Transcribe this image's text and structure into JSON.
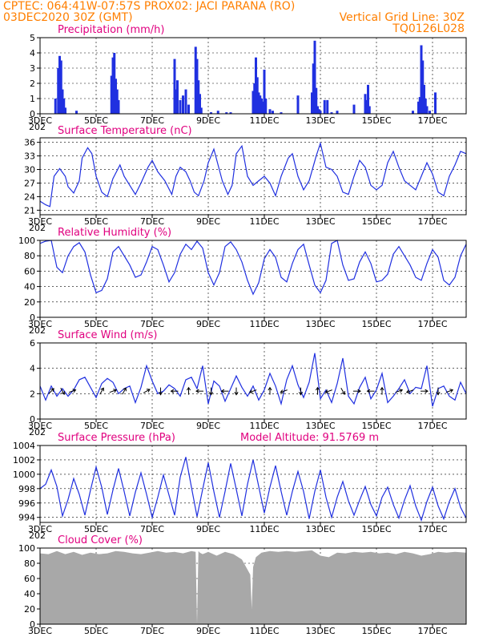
{
  "header": {
    "line1_left": "CPTEC:   064:41W-07:57S   PROX02: JACI PARANA (RO)",
    "line2_left": "03DEC2020 30Z (GMT)",
    "line2_right": "Vertical Grid Line: 30Z",
    "line3_right": "TQ0126L028"
  },
  "x_axis": {
    "start_day": 3,
    "end_day": 18.2,
    "tick_labels": [
      "3DEC",
      "5DEC",
      "7DEC",
      "9DEC",
      "11DEC",
      "13DEC",
      "15DEC",
      "17DEC"
    ],
    "tick_days": [
      3,
      5,
      7,
      9,
      11,
      13,
      15,
      17
    ],
    "corner_label": "202"
  },
  "colors": {
    "line": "#2030e0",
    "bar": "#2030e0",
    "cloud": "#a8a8a8",
    "header": "#ff7f00",
    "title": "#e0007f"
  },
  "chart_data": [
    {
      "type": "bar",
      "title": "Precipitation (mm/h)",
      "ylim": [
        0,
        5
      ],
      "yticks": [
        0,
        1,
        2,
        3,
        4,
        5
      ],
      "x": [
        3.55,
        3.65,
        3.7,
        3.75,
        3.8,
        3.85,
        3.9,
        4.3,
        5.55,
        5.6,
        5.65,
        5.7,
        5.75,
        5.8,
        7.8,
        7.85,
        7.9,
        8.0,
        8.1,
        8.2,
        8.3,
        8.55,
        8.6,
        8.65,
        8.7,
        8.75,
        9.1,
        9.35,
        9.65,
        9.8,
        10.6,
        10.65,
        10.7,
        10.75,
        10.8,
        10.85,
        10.9,
        10.95,
        11.0,
        11.05,
        11.2,
        11.3,
        11.6,
        12.2,
        12.7,
        12.75,
        12.8,
        12.85,
        12.9,
        12.95,
        13.0,
        13.15,
        13.25,
        13.4,
        13.6,
        14.2,
        14.6,
        14.65,
        14.7,
        14.75,
        16.3,
        16.5,
        16.55,
        16.6,
        16.65,
        16.7,
        16.75,
        16.8,
        16.9,
        17.1
      ],
      "values": [
        1.0,
        3.0,
        3.8,
        3.5,
        1.6,
        1.0,
        0.4,
        0.2,
        2.5,
        3.7,
        4.0,
        2.3,
        1.6,
        0.9,
        3.6,
        1.6,
        2.2,
        0.9,
        1.2,
        1.6,
        0.6,
        4.4,
        3.6,
        2.2,
        1.3,
        0.4,
        0.1,
        0.2,
        0.1,
        0.1,
        1.5,
        2.0,
        3.7,
        2.4,
        1.4,
        1.2,
        1.0,
        0.8,
        2.9,
        1.0,
        0.3,
        0.2,
        0.1,
        1.2,
        1.4,
        3.3,
        4.8,
        1.7,
        0.5,
        0.3,
        0.2,
        0.9,
        0.9,
        0.1,
        0.2,
        0.6,
        1.3,
        0.9,
        1.9,
        0.5,
        0.2,
        0.8,
        1.1,
        4.5,
        3.5,
        1.9,
        1.0,
        0.5,
        0.2,
        1.4
      ]
    },
    {
      "type": "line",
      "title": "Surface Temperature (nC)",
      "ylim": [
        20,
        37
      ],
      "yticks": [
        21,
        24,
        27,
        30,
        33,
        36
      ],
      "x": [
        3.0,
        3.2,
        3.35,
        3.5,
        3.7,
        3.9,
        4.0,
        4.2,
        4.4,
        4.5,
        4.7,
        4.85,
        5.0,
        5.2,
        5.4,
        5.6,
        5.85,
        6.0,
        6.2,
        6.4,
        6.6,
        6.85,
        7.0,
        7.2,
        7.45,
        7.7,
        7.85,
        8.0,
        8.2,
        8.35,
        8.5,
        8.65,
        8.85,
        9.0,
        9.2,
        9.5,
        9.7,
        9.85,
        10.0,
        10.2,
        10.4,
        10.6,
        10.8,
        11.0,
        11.2,
        11.4,
        11.6,
        11.85,
        12.0,
        12.2,
        12.4,
        12.6,
        12.85,
        13.0,
        13.2,
        13.4,
        13.6,
        13.8,
        14.0,
        14.2,
        14.4,
        14.6,
        14.8,
        15.0,
        15.2,
        15.4,
        15.6,
        15.8,
        16.0,
        16.2,
        16.4,
        16.6,
        16.8,
        17.0,
        17.2,
        17.4,
        17.6,
        17.8,
        18.0,
        18.2
      ],
      "values": [
        23.0,
        22.2,
        21.8,
        28.5,
        30.2,
        28.5,
        26.2,
        24.8,
        27.5,
        32.5,
        34.8,
        33.5,
        28.5,
        25.0,
        24.0,
        28.0,
        31.0,
        28.5,
        26.5,
        24.5,
        27.0,
        30.5,
        32.0,
        29.5,
        27.5,
        24.5,
        28.5,
        30.5,
        29.5,
        27.5,
        25.0,
        24.2,
        27.5,
        31.5,
        34.5,
        27.5,
        24.5,
        26.5,
        33.5,
        35.2,
        28.5,
        26.5,
        27.5,
        28.5,
        27.0,
        24.2,
        28.5,
        32.5,
        33.5,
        28.5,
        25.5,
        27.5,
        33.0,
        35.8,
        30.5,
        30.0,
        28.5,
        25.0,
        24.5,
        28.5,
        32.0,
        30.5,
        26.5,
        25.5,
        26.5,
        31.5,
        34.0,
        30.5,
        27.5,
        26.5,
        25.5,
        28.5,
        31.5,
        29.0,
        25.0,
        24.2,
        28.5,
        31.0,
        34.0,
        33.5
      ]
    },
    {
      "type": "line",
      "title": "Relative Humidity (%)",
      "ylim": [
        0,
        100
      ],
      "yticks": [
        0,
        20,
        40,
        60,
        80,
        100
      ],
      "x": [
        3.0,
        3.2,
        3.4,
        3.6,
        3.8,
        4.0,
        4.2,
        4.4,
        4.6,
        4.8,
        5.0,
        5.2,
        5.4,
        5.6,
        5.8,
        6.0,
        6.2,
        6.4,
        6.6,
        6.8,
        7.0,
        7.2,
        7.4,
        7.6,
        7.8,
        8.0,
        8.2,
        8.4,
        8.6,
        8.8,
        9.0,
        9.2,
        9.4,
        9.6,
        9.8,
        10.0,
        10.2,
        10.4,
        10.6,
        10.8,
        11.0,
        11.2,
        11.4,
        11.6,
        11.8,
        12.0,
        12.2,
        12.4,
        12.6,
        12.8,
        13.0,
        13.2,
        13.4,
        13.6,
        13.8,
        14.0,
        14.2,
        14.4,
        14.6,
        14.8,
        15.0,
        15.2,
        15.4,
        15.6,
        15.8,
        16.0,
        16.2,
        16.4,
        16.6,
        16.8,
        17.0,
        17.2,
        17.4,
        17.6,
        17.8,
        18.0,
        18.2
      ],
      "values": [
        96,
        99,
        100,
        65,
        58,
        80,
        92,
        97,
        85,
        55,
        32,
        35,
        50,
        85,
        92,
        80,
        68,
        52,
        55,
        72,
        92,
        88,
        68,
        46,
        58,
        82,
        95,
        88,
        99,
        90,
        58,
        42,
        58,
        92,
        98,
        88,
        72,
        48,
        30,
        45,
        76,
        88,
        78,
        52,
        46,
        70,
        88,
        95,
        68,
        42,
        32,
        48,
        96,
        100,
        68,
        48,
        50,
        72,
        85,
        70,
        46,
        48,
        56,
        82,
        92,
        80,
        68,
        52,
        48,
        70,
        88,
        78,
        48,
        42,
        52,
        80,
        95
      ]
    },
    {
      "type": "line",
      "title": "Surface Wind (m/s)",
      "ylim": [
        0,
        6
      ],
      "yticks": [
        0,
        2,
        4,
        6
      ],
      "x": [
        3.0,
        3.2,
        3.4,
        3.6,
        3.8,
        4.0,
        4.2,
        4.4,
        4.6,
        4.8,
        5.0,
        5.2,
        5.4,
        5.6,
        5.8,
        6.0,
        6.2,
        6.4,
        6.6,
        6.8,
        7.0,
        7.2,
        7.4,
        7.6,
        7.8,
        8.0,
        8.2,
        8.4,
        8.6,
        8.8,
        9.0,
        9.2,
        9.4,
        9.6,
        9.8,
        10.0,
        10.2,
        10.4,
        10.6,
        10.8,
        11.0,
        11.2,
        11.4,
        11.6,
        11.8,
        12.0,
        12.2,
        12.4,
        12.6,
        12.8,
        13.0,
        13.2,
        13.4,
        13.6,
        13.8,
        14.0,
        14.2,
        14.4,
        14.6,
        14.8,
        15.0,
        15.2,
        15.4,
        15.6,
        15.8,
        16.0,
        16.2,
        16.4,
        16.6,
        16.8,
        17.0,
        17.2,
        17.4,
        17.6,
        17.8,
        18.0,
        18.2
      ],
      "values": [
        2.6,
        1.5,
        2.6,
        1.8,
        2.4,
        1.8,
        2.3,
        3.1,
        3.3,
        2.5,
        1.7,
        2.8,
        3.2,
        2.9,
        2.0,
        2.4,
        2.6,
        1.3,
        2.5,
        4.2,
        3.0,
        2.0,
        2.2,
        2.7,
        2.4,
        1.8,
        3.1,
        3.3,
        2.4,
        4.2,
        1.2,
        3.0,
        2.6,
        1.4,
        2.4,
        3.4,
        2.5,
        1.8,
        2.6,
        1.5,
        2.3,
        3.6,
        2.6,
        1.2,
        3.1,
        4.2,
        2.7,
        1.7,
        2.9,
        5.2,
        1.6,
        2.3,
        1.3,
        2.8,
        4.8,
        1.8,
        1.2,
        2.5,
        3.3,
        1.6,
        2.3,
        3.6,
        1.3,
        1.8,
        2.4,
        3.1,
        2.0,
        2.5,
        2.4,
        4.2,
        1.0,
        2.4,
        2.6,
        1.8,
        1.5,
        2.9,
        2.0
      ],
      "arrow_x": [
        3.4,
        3.8,
        4.15,
        5.2,
        5.6,
        6.0,
        6.8,
        7.3,
        7.8,
        8.3,
        8.7,
        9.1,
        9.6,
        10.0,
        10.6,
        11.2,
        11.7,
        12.3,
        12.9,
        13.3,
        13.8,
        14.3,
        14.8,
        15.2,
        15.8,
        16.2,
        16.7,
        17.2,
        17.6
      ],
      "arrow_dir_deg": [
        45,
        300,
        20,
        60,
        20,
        60,
        30,
        270,
        180,
        90,
        180,
        270,
        180,
        270,
        200,
        90,
        200,
        270,
        90,
        200,
        300,
        0,
        180,
        90,
        20,
        200,
        0,
        270,
        20
      ]
    },
    {
      "type": "line",
      "title": "Surface Pressure (hPa)",
      "annotation": "Model Altitude: 91.5769 m",
      "ylim": [
        993.3,
        1004
      ],
      "yticks": [
        994,
        996,
        998,
        1000,
        1002,
        1004
      ],
      "x": [
        3.0,
        3.2,
        3.4,
        3.6,
        3.8,
        4.0,
        4.2,
        4.4,
        4.6,
        4.8,
        5.0,
        5.2,
        5.4,
        5.6,
        5.8,
        6.0,
        6.2,
        6.4,
        6.6,
        6.8,
        7.0,
        7.2,
        7.4,
        7.6,
        7.8,
        8.0,
        8.2,
        8.4,
        8.6,
        8.8,
        9.0,
        9.2,
        9.4,
        9.6,
        9.8,
        10.0,
        10.2,
        10.4,
        10.6,
        10.8,
        11.0,
        11.2,
        11.4,
        11.6,
        11.8,
        12.0,
        12.2,
        12.4,
        12.6,
        12.8,
        13.0,
        13.2,
        13.4,
        13.6,
        13.8,
        14.0,
        14.2,
        14.4,
        14.6,
        14.8,
        15.0,
        15.2,
        15.4,
        15.6,
        15.8,
        16.0,
        16.2,
        16.4,
        16.6,
        16.8,
        17.0,
        17.2,
        17.4,
        17.6,
        17.8,
        18.0,
        18.2
      ],
      "values": [
        998.0,
        998.6,
        1000.6,
        998.3,
        994.2,
        996.5,
        999.4,
        997.2,
        994.3,
        997.8,
        1001.0,
        998.2,
        994.4,
        997.8,
        1000.8,
        997.6,
        994.2,
        997.5,
        1000.2,
        997.2,
        994.0,
        996.8,
        999.9,
        997.1,
        994.3,
        999.6,
        1002.4,
        998.2,
        994.1,
        997.9,
        1001.6,
        997.6,
        994.0,
        997.6,
        1001.5,
        997.9,
        994.2,
        998.6,
        1002.0,
        998.3,
        994.6,
        998.2,
        1001.2,
        997.6,
        994.3,
        997.6,
        1000.4,
        997.6,
        993.8,
        997.6,
        1000.6,
        996.8,
        994.0,
        996.8,
        999.0,
        996.3,
        994.3,
        996.4,
        998.3,
        995.8,
        994.2,
        996.8,
        998.2,
        995.8,
        993.9,
        996.4,
        998.4,
        995.6,
        993.6,
        996.2,
        998.2,
        995.6,
        993.8,
        996.2,
        998.0,
        995.4,
        993.9
      ]
    },
    {
      "type": "area",
      "title": "Cloud Cover (%)",
      "ylim": [
        0,
        100
      ],
      "yticks": [
        0,
        20,
        40,
        60,
        80,
        100
      ],
      "x": [
        3.0,
        3.3,
        3.6,
        3.9,
        4.2,
        4.5,
        4.8,
        5.1,
        5.4,
        5.7,
        6.0,
        6.3,
        6.6,
        6.9,
        7.2,
        7.5,
        7.8,
        8.1,
        8.4,
        8.55,
        8.6,
        8.65,
        8.7,
        8.8,
        9.0,
        9.3,
        9.6,
        9.9,
        10.2,
        10.5,
        10.55,
        10.6,
        10.7,
        10.9,
        11.2,
        11.5,
        11.8,
        12.1,
        12.4,
        12.7,
        13.0,
        13.3,
        13.6,
        13.9,
        14.2,
        14.5,
        14.8,
        15.1,
        15.4,
        15.7,
        16.0,
        16.3,
        16.6,
        16.9,
        17.2,
        17.5,
        17.8,
        18.2
      ],
      "values": [
        93,
        92,
        96,
        92,
        95,
        91,
        94,
        92,
        93,
        96,
        95,
        93,
        92,
        94,
        96,
        94,
        95,
        93,
        96,
        95,
        1,
        96,
        94,
        92,
        95,
        90,
        95,
        92,
        85,
        65,
        20,
        75,
        88,
        94,
        96,
        95,
        96,
        95,
        96,
        97,
        90,
        88,
        94,
        93,
        95,
        94,
        95,
        93,
        94,
        92,
        95,
        93,
        90,
        92,
        95,
        94,
        95,
        94
      ]
    }
  ]
}
